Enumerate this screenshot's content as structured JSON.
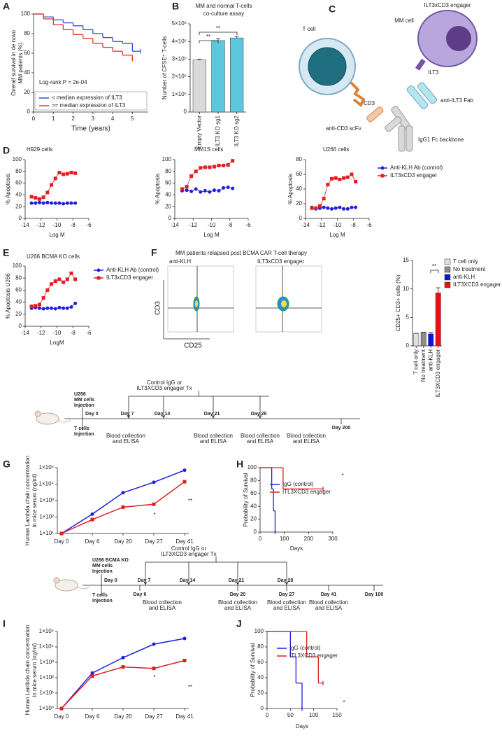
{
  "panel_labels": [
    "A",
    "B",
    "C",
    "D",
    "E",
    "F",
    "G",
    "H",
    "I",
    "J"
  ],
  "chart_data": [
    {
      "type": "step",
      "ylabel": [
        "Overall survival in de novo",
        "MM patients (%)"
      ],
      "xlabel": "Time (years)",
      "xlim": [
        0,
        5.8
      ],
      "xticks": [
        0,
        1,
        2,
        3,
        4,
        5
      ],
      "ylim": [
        0,
        100
      ],
      "yticks": [
        0,
        20,
        40,
        60,
        80,
        100
      ],
      "annotations": [
        "Log-rank P = 2e-04"
      ],
      "series": [
        {
          "name": "< median expression of ILT3",
          "color": "#2f4fd8",
          "x": [
            0,
            0.5,
            1,
            1.5,
            2,
            2.5,
            3,
            3.5,
            4,
            4.5,
            5,
            5.4
          ],
          "values": [
            100,
            97,
            94,
            91,
            88,
            84,
            80,
            76,
            72,
            70,
            62,
            62
          ]
        },
        {
          "name": ">= median expression of ILT3",
          "color": "#e0392b",
          "x": [
            0,
            0.5,
            1,
            1.5,
            2,
            2.5,
            3,
            3.5,
            4,
            4.5,
            5
          ],
          "values": [
            100,
            95,
            89,
            84,
            79,
            75,
            70,
            66,
            62,
            58,
            54
          ]
        }
      ]
    },
    {
      "type": "bar",
      "title": "MM and normal T-cells",
      "subtitle": "co-culture assay",
      "ylabel": "Number of CFSE⁺ T-cells",
      "categories": [
        "Empty Vector",
        "ILT3 KO sg1",
        "ILT3 KO sg2"
      ],
      "values": [
        295000,
        405000,
        420000
      ],
      "errors": [
        4000,
        10000,
        9000
      ],
      "colors": [
        "#d9d9d9",
        "#5bc8e0",
        "#5bc8e0"
      ],
      "ylim": [
        0,
        500000
      ],
      "yticks": [
        0,
        {
          "value": 100000,
          "label": "1×10⁵"
        },
        {
          "value": 200000,
          "label": "2×10⁵"
        },
        {
          "value": 300000,
          "label": "3×10⁵"
        },
        {
          "value": 400000,
          "label": "4×10⁵"
        },
        {
          "value": 500000,
          "label": "5×10⁵"
        }
      ],
      "annotations": [
        "**",
        "**"
      ]
    },
    {
      "type": "scatter",
      "title": "H929 cells",
      "ylabel": "% Apoptosis",
      "xlabel": "Log M",
      "xlim": [
        -14,
        -6
      ],
      "xticks": [
        -14,
        -12,
        -10,
        -8,
        -6
      ],
      "ylim": [
        0,
        100
      ],
      "yticks": [
        0,
        20,
        40,
        60,
        80,
        100
      ],
      "x": [
        -13.2,
        -12.7,
        -12.2,
        -11.7,
        -11.2,
        -10.7,
        -10.2,
        -9.7,
        -9.2,
        -8.7,
        -8.2,
        -7.7
      ],
      "series": [
        {
          "color": "#1f1fe0",
          "marker": "circle",
          "values": [
            26,
            26,
            27,
            26,
            27,
            26,
            26,
            26,
            25,
            26,
            26,
            26
          ]
        },
        {
          "color": "#e02020",
          "marker": "square",
          "values": [
            37,
            35,
            33,
            36,
            44,
            57,
            68,
            78,
            75,
            76,
            78,
            77
          ]
        }
      ]
    },
    {
      "type": "scatter",
      "title": "MM1S cells",
      "ylabel": "% Apoptosis",
      "xlabel": "Log M",
      "xlim": [
        -14,
        -6
      ],
      "xticks": [
        -14,
        -12,
        -10,
        -8,
        -6
      ],
      "ylim": [
        0,
        100
      ],
      "yticks": [
        0,
        20,
        40,
        60,
        80,
        100
      ],
      "x": [
        -13.2,
        -12.7,
        -12.2,
        -11.7,
        -11.2,
        -10.7,
        -10.2,
        -9.7,
        -9.2,
        -8.7,
        -8.2,
        -7.7
      ],
      "series": [
        {
          "color": "#1f1fe0",
          "marker": "circle",
          "values": [
            47,
            48,
            46,
            50,
            45,
            47,
            45,
            48,
            47,
            52,
            53,
            51
          ]
        },
        {
          "color": "#e02020",
          "marker": "square",
          "values": [
            50,
            54,
            72,
            80,
            86,
            87,
            87,
            88,
            90,
            90,
            91,
            98
          ]
        }
      ]
    },
    {
      "type": "scatter",
      "title": "U266 cells",
      "ylabel": "% Apoptosis",
      "xlabel": "Log M",
      "xlim": [
        -14,
        -6
      ],
      "xticks": [
        -14,
        -12,
        -10,
        -8,
        -6
      ],
      "ylim": [
        0,
        80
      ],
      "yticks": [
        0,
        20,
        40,
        60,
        80
      ],
      "x": [
        -13.2,
        -12.7,
        -12.2,
        -11.7,
        -11.2,
        -10.7,
        -10.2,
        -9.7,
        -9.2,
        -8.7,
        -8.2,
        -7.7
      ],
      "series": [
        {
          "name": "Anti-KLH  Ab (control)",
          "color": "#1f1fe0",
          "marker": "circle",
          "values": [
            15,
            13,
            14,
            15,
            14,
            13,
            14,
            15,
            13,
            13,
            15,
            15
          ]
        },
        {
          "name": "ILT3xCD3 engager",
          "color": "#e02020",
          "marker": "square",
          "values": [
            14,
            14,
            17,
            27,
            46,
            54,
            55,
            53,
            55,
            56,
            60,
            50
          ]
        }
      ]
    },
    {
      "type": "scatter",
      "title": "U266 BCMA KO cells",
      "ylabel": "% Apoptosis U266",
      "xlabel": "LogM",
      "xlim": [
        -14,
        -6
      ],
      "xticks": [
        -14,
        -12,
        -10,
        -8,
        -6
      ],
      "ylim": [
        0,
        100
      ],
      "yticks": [
        0,
        20,
        40,
        60,
        80,
        100
      ],
      "x": [
        -13.2,
        -12.7,
        -12.2,
        -11.7,
        -11.2,
        -10.7,
        -10.2,
        -9.7,
        -9.2,
        -8.7,
        -8.2,
        -7.7
      ],
      "series": [
        {
          "name": "Anti-KLH  Ab (control)",
          "color": "#1f1fe0",
          "marker": "circle",
          "values": [
            30,
            31,
            30,
            29,
            30,
            30,
            29,
            31,
            30,
            30,
            32,
            38
          ]
        },
        {
          "name": "ILT3xCD3 engager",
          "color": "#e02020",
          "marker": "square",
          "values": [
            33,
            34,
            36,
            47,
            60,
            70,
            75,
            78,
            73,
            78,
            88,
            78
          ]
        }
      ]
    },
    {
      "type": "bar",
      "ylabel": "CD25+ CD3+ cells (%)",
      "legend": "right",
      "categories": [
        "T cell only",
        "No treatment",
        "anti-KLH",
        "ILT3XCD3 engager"
      ],
      "values": [
        2.2,
        2.4,
        2.1,
        9.3
      ],
      "errors": [
        0,
        0,
        0.3,
        0.9
      ],
      "colors": [
        "#e0e0e0",
        "#8c8c8c",
        "#1010e8",
        "#ee1010"
      ],
      "ylim": [
        0,
        15
      ],
      "yticks": [
        0,
        5,
        10,
        15
      ],
      "annotations": [
        "**"
      ]
    },
    {
      "type": "line",
      "log_y": true,
      "ylabel": [
        "Human Lambda chain concentration",
        "in mice serum (ng/ml)"
      ],
      "categories": [
        "Day 0",
        "Day 6",
        "Day 20",
        "Day 27",
        "Day 41"
      ],
      "ylim": [
        10,
        100000
      ],
      "yticks": [
        {
          "value": 10,
          "label": "1×10¹"
        },
        {
          "value": 100,
          "label": "1×10²"
        },
        {
          "value": 1000,
          "label": "1×10³"
        },
        {
          "value": 10000,
          "label": "1×10⁴"
        },
        {
          "value": 100000,
          "label": "1×10⁵"
        }
      ],
      "annotations": [
        "*",
        "**"
      ],
      "series": [
        {
          "color": "#1f1fe0",
          "marker": "circle",
          "values": [
            10,
            150,
            3000,
            13000,
            70000
          ]
        },
        {
          "color": "#e02020",
          "marker": "square",
          "values": [
            10,
            70,
            400,
            600,
            14000
          ]
        }
      ]
    },
    {
      "type": "step",
      "ylabel": "Probability of Survival",
      "xlabel": "Days",
      "xlim": [
        0,
        300
      ],
      "xticks": [
        0,
        100,
        200,
        300
      ],
      "ylim": [
        0,
        100
      ],
      "yticks": [
        0,
        20,
        40,
        60,
        80,
        100
      ],
      "annotations": [
        "*"
      ],
      "series": [
        {
          "name": "IgG (control)",
          "color": "#1f1fe0",
          "x": [
            0,
            48,
            55,
            62
          ],
          "values": [
            100,
            67,
            33,
            0
          ]
        },
        {
          "name": "ITL3XCD3 engager",
          "color": "#e02020",
          "x": [
            0,
            95,
            260
          ],
          "values": [
            100,
            67,
            67
          ]
        }
      ]
    },
    {
      "type": "line",
      "log_y": true,
      "ylabel": [
        "Human Lambda chain concentration",
        "in mice serum (ng/ml)"
      ],
      "categories": [
        "Day 0",
        "Day 6",
        "Day 20",
        "Day 27",
        "Day 41"
      ],
      "ylim": [
        1,
        100000
      ],
      "yticks": [
        {
          "value": 1,
          "label": "1×10⁰"
        },
        {
          "value": 10,
          "label": "1×10¹"
        },
        {
          "value": 100,
          "label": "1×10²"
        },
        {
          "value": 1000,
          "label": "1×10³"
        },
        {
          "value": 10000,
          "label": "1×10⁴"
        },
        {
          "value": 100000,
          "label": "1×10⁵"
        }
      ],
      "annotations": [
        "*",
        "**"
      ],
      "series": [
        {
          "color": "#1f1fe0",
          "marker": "circle",
          "values": [
            1,
            200,
            2000,
            15000,
            35000
          ]
        },
        {
          "color": "#e02020",
          "marker": "square",
          "values": [
            1,
            130,
            500,
            400,
            1300
          ]
        }
      ]
    },
    {
      "type": "step",
      "ylabel": "Probability of Survival",
      "xlabel": "Days",
      "xlim": [
        0,
        150
      ],
      "xticks": [
        0,
        50,
        100,
        150
      ],
      "ylim": [
        0,
        100
      ],
      "yticks": [
        0,
        20,
        40,
        60,
        80,
        100
      ],
      "annotations": [
        "*"
      ],
      "series": [
        {
          "name": "IgG (control)",
          "color": "#1f1fe0",
          "x": [
            0,
            50,
            62,
            75
          ],
          "values": [
            100,
            67,
            33,
            0
          ]
        },
        {
          "name": "ITL3XCD3 engager",
          "color": "#e02020",
          "x": [
            0,
            85,
            110,
            120
          ],
          "values": [
            100,
            67,
            33,
            33
          ]
        }
      ]
    }
  ],
  "diagram": {
    "title": "ILT3xCD3 engager",
    "mm_cell": "MM cell",
    "t_cell": "T cell",
    "ilt3": "ILT3",
    "cd3": "CD3",
    "anti_ilt3": "anti-ILT3 Fab",
    "anti_cd3": "anti-CD3 scFv",
    "fc": "IgG1 Fc backbone"
  },
  "flow": {
    "title": "MM patients relapsed post BCMA CAR T-cell therapy",
    "plots": [
      "anti-KLH",
      "ILT3xCD3 engager"
    ],
    "y_axis": "CD3",
    "x_axis": "CD25"
  },
  "timelines": [
    {
      "mm_injection": [
        "U266",
        "MM cells",
        "Injection"
      ],
      "t_injection": [
        "T cells",
        "Injection"
      ],
      "start": "Day 0",
      "treatment": [
        "Control IgG or",
        "ILT3XCD3 engager Tx"
      ],
      "days_above": [
        "Day 7",
        "Day 14",
        "Day 21",
        "Day 28"
      ],
      "days_below": [
        "Day 200"
      ],
      "sampling": [
        [
          "Blood collection",
          "and ELISA"
        ],
        [
          "Blood collection",
          "and ELISA"
        ],
        [
          "Blood collection",
          "and ELISA"
        ],
        [
          "Blood collection",
          "and ELISA"
        ]
      ]
    },
    {
      "mm_injection": [
        "U266 BCMA KO",
        "MM cells",
        "Injection"
      ],
      "t_injection": [
        "T cells",
        "Injection"
      ],
      "start": "Day 0",
      "treatment": [
        "Control IgG or",
        "ILT3XCD3 engager Tx"
      ],
      "days_above": [
        "Day 7",
        "Day 14",
        "Day 21",
        "Day 28"
      ],
      "days_below": [
        "Day 6",
        "Day 20",
        "Day 27",
        "Day 41",
        "Day 100"
      ],
      "sampling": [
        [
          "Blood collection",
          "and ELISA"
        ],
        [
          "Blood collection",
          "and ELISA"
        ],
        [
          "Blood collection",
          "and ELISA"
        ],
        [
          "Blood collection",
          "and ELISA"
        ]
      ]
    }
  ]
}
